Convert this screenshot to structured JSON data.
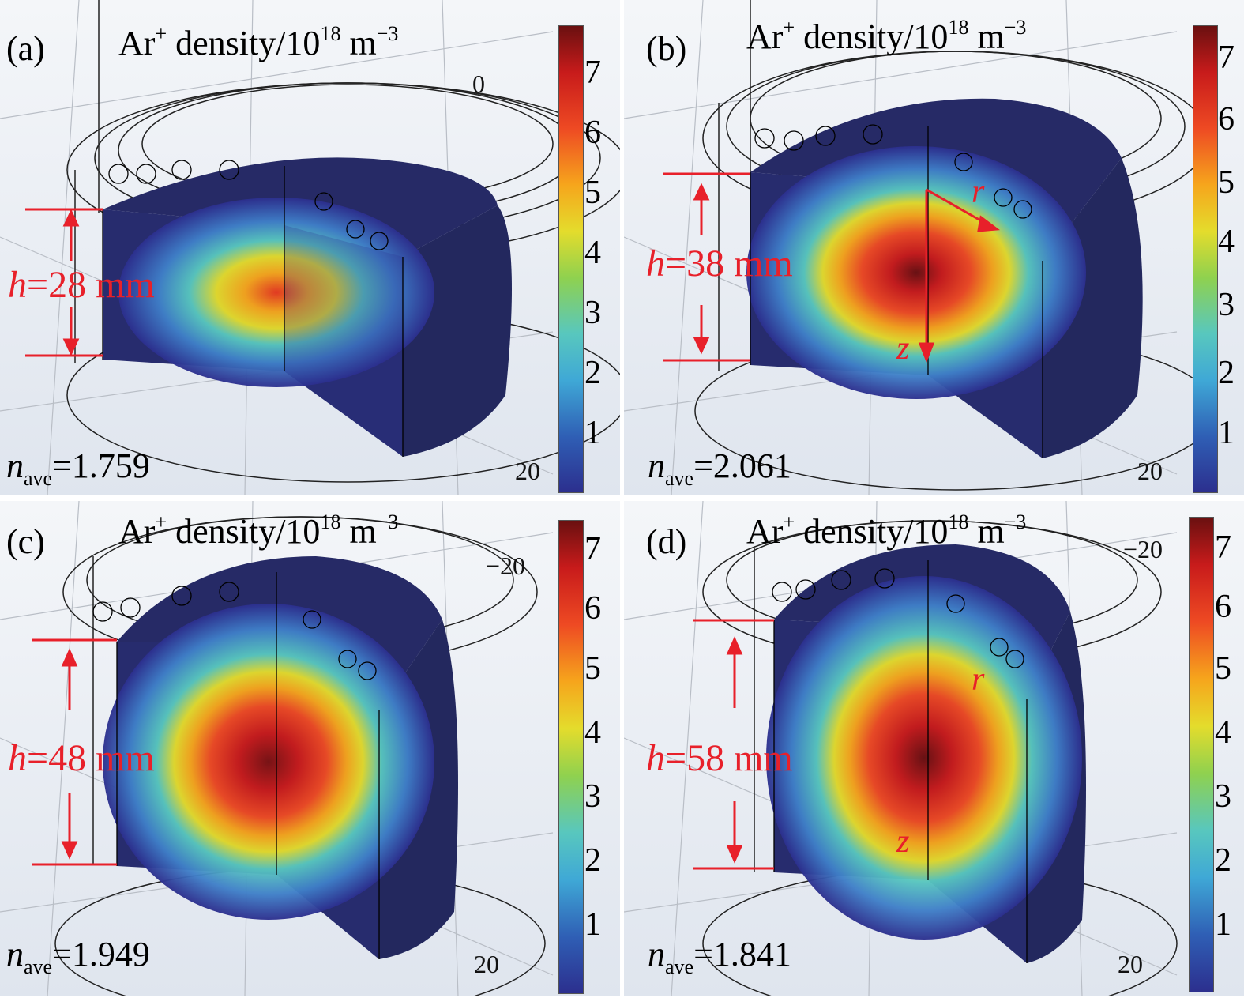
{
  "figure": {
    "title_prefix": "Ar",
    "title_sup": "+",
    "title_mid": " density/10",
    "title_exp": "18",
    "title_unit": " m",
    "title_unit_exp": "−3",
    "colorbar_ticks": [
      "1",
      "2",
      "3",
      "4",
      "5",
      "6",
      "7"
    ],
    "n_symbol": "n",
    "n_sub": "ave",
    "h_symbol": "h",
    "colors": {
      "annotation": "#e8202a",
      "dark_blue": "#272c6e",
      "peak": "#6a1010"
    }
  },
  "panels": [
    {
      "id": "a",
      "label": "(a)",
      "h_value": "=28 mm",
      "n_value": "=1.759",
      "axis_top": "0",
      "axis_bottom": "20",
      "show_rz": false,
      "r_label": "",
      "z_label": ""
    },
    {
      "id": "b",
      "label": "(b)",
      "h_value": "=38 mm",
      "n_value": "=2.061",
      "axis_top": "",
      "axis_bottom": "20",
      "show_rz": true,
      "r_label": "r",
      "z_label": "z"
    },
    {
      "id": "c",
      "label": "(c)",
      "h_value": "=48 mm",
      "n_value": "=1.949",
      "axis_top": "−20",
      "axis_bottom": "20",
      "show_rz": false,
      "r_label": "",
      "z_label": ""
    },
    {
      "id": "d",
      "label": "(d)",
      "h_value": "=58 mm",
      "n_value": "=1.841",
      "axis_top": "−20",
      "axis_bottom": "20",
      "show_rz": true,
      "r_label": "r",
      "z_label": "z"
    }
  ]
}
